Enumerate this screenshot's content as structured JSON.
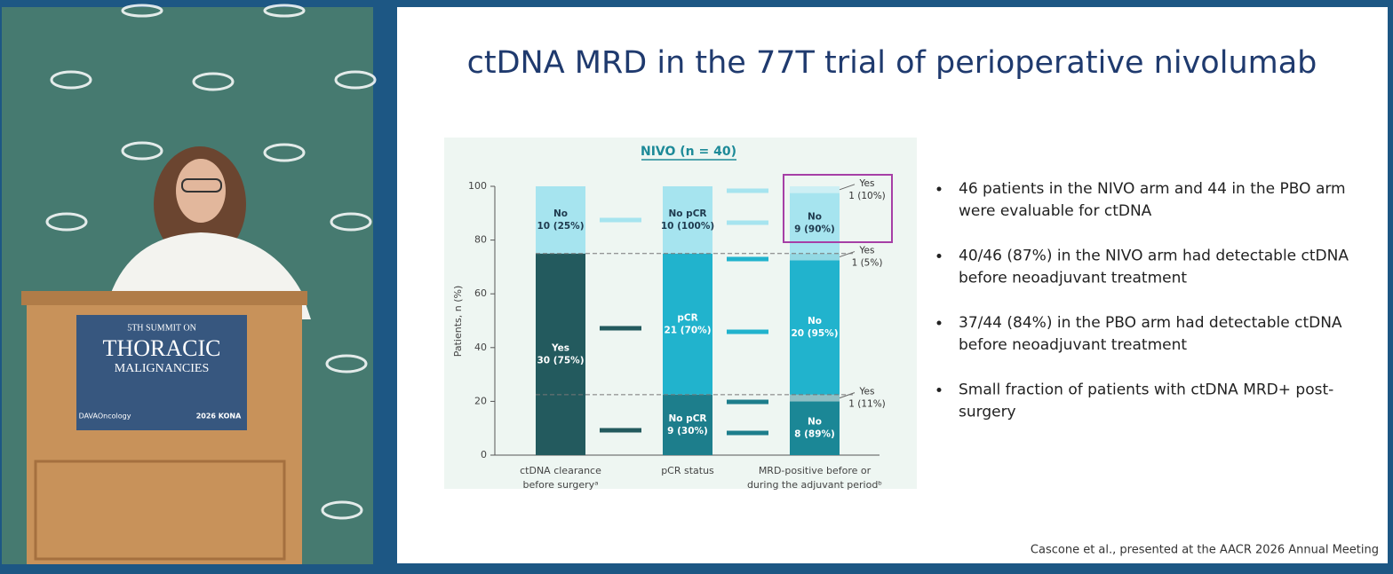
{
  "video": {
    "sign": {
      "line1": "5TH SUMMIT ON",
      "line2": "THORACIC",
      "line3": "MALIGNANCIES",
      "logo_left": "DAVAOncology",
      "logo_right": "2026 KONA"
    }
  },
  "slide": {
    "title": "ctDNA MRD in the 77T trial of perioperative nivolumab",
    "bullets": [
      [
        "46 patients in the NIVO arm and 44 in the PBO arm",
        "were evaluable for ctDNA"
      ],
      [
        "40/46 (87%) in the NIVO arm had detectable ctDNA",
        "before neoadjuvant treatment"
      ],
      [
        "37/44 (84%) in the PBO arm had detectable ctDNA",
        "before neoadjuvant treatment"
      ],
      [
        "Small fraction of patients with ctDNA MRD+ post-",
        "surgery"
      ]
    ],
    "citation": "Cascone et al., presented at the AACR 2026 Annual Meeting"
  },
  "chart_data": {
    "type": "stacked-bar",
    "title": "NIVO (n = 40)",
    "y_label": "Patients, n (%)",
    "categories": [
      [
        "ctDNA clearance",
        "before surgeryᵃ"
      ],
      [
        "pCR status"
      ],
      [
        "MRD-positive before or",
        "during the adjuvant periodᵇ"
      ]
    ],
    "ylim": [
      0,
      100
    ],
    "yticks": [
      0,
      20,
      40,
      60,
      80,
      100
    ],
    "bars": [
      {
        "segments": [
          {
            "name": "Yes",
            "count": "30 (75%)",
            "value": 75,
            "color": "#235a5e"
          },
          {
            "name": "No",
            "count": "10 (25%)",
            "value": 25,
            "color": "#a6e4ef"
          }
        ]
      },
      {
        "segments": [
          {
            "name": "No pCR",
            "count": "9 (30%)",
            "value": 22.5,
            "color": "#1d7e8c"
          },
          {
            "name": "pCR",
            "count": "21 (70%)",
            "value": 52.5,
            "color": "#21b3cd"
          },
          {
            "name": "No pCR",
            "count": "10 (100%)",
            "value": 25,
            "color": "#a6e4ef"
          }
        ]
      },
      {
        "segments": [
          {
            "name": "No",
            "count": "8 (89%)",
            "value": 20,
            "color": "#1b8796"
          },
          {
            "name": "Yes",
            "count": "1 (11%)",
            "value": 2.5,
            "color": "#8fbfc4"
          },
          {
            "name": "No",
            "count": "20 (95%)",
            "value": 50,
            "color": "#21b3cd"
          },
          {
            "name": "Yes",
            "count": "1 (5%)",
            "value": 2.5,
            "color": "#93d9e4"
          },
          {
            "name": "No",
            "count": "9 (90%)",
            "value": 22.5,
            "color": "#a6e4ef"
          },
          {
            "name": "Yes",
            "count": "1 (10%)",
            "value": 2.5,
            "color": "#cdeff4"
          }
        ]
      }
    ]
  }
}
